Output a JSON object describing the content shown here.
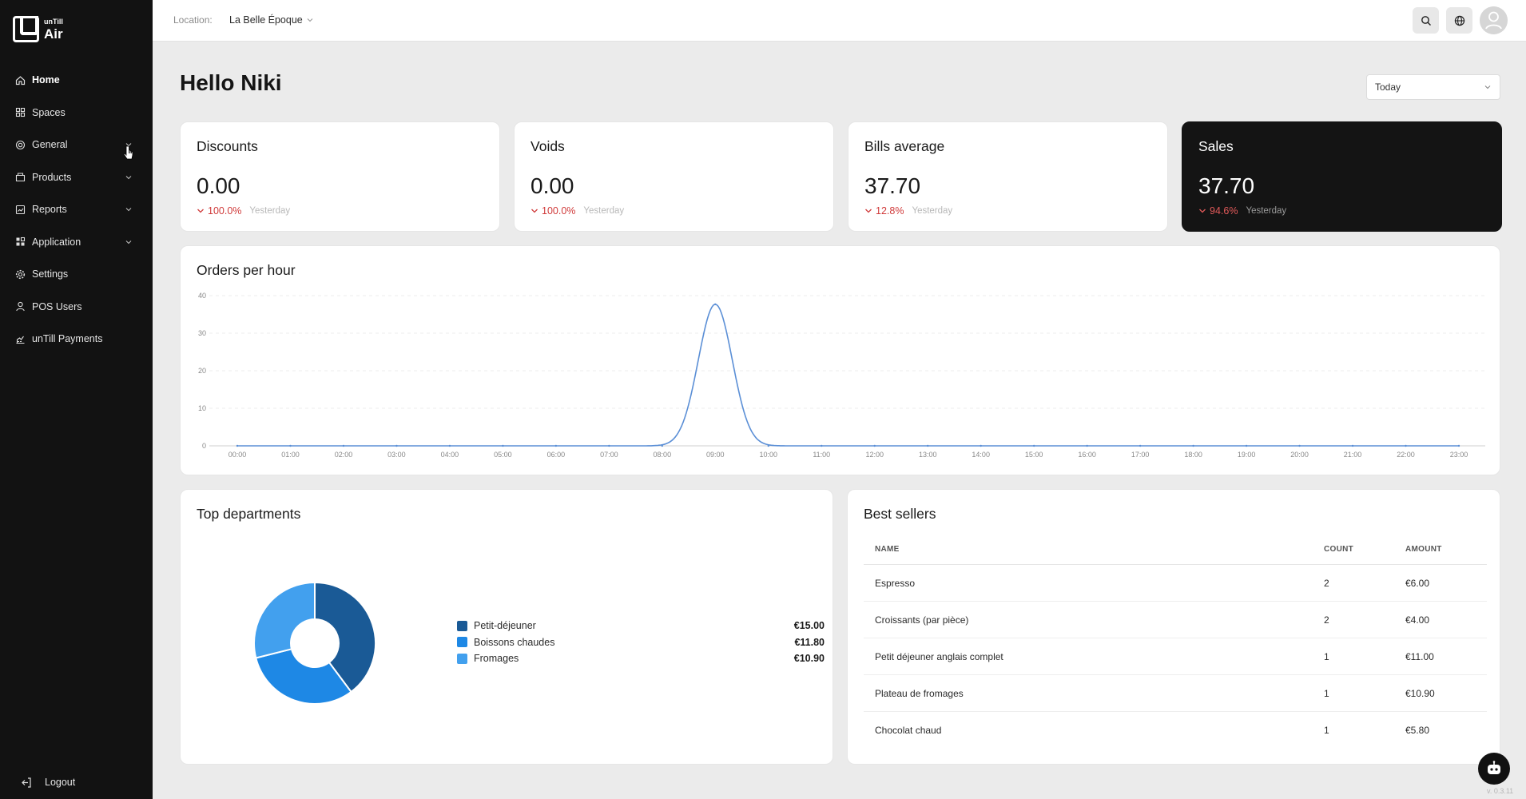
{
  "brand": {
    "small": "unTill",
    "name": "Air"
  },
  "nav": {
    "items": [
      {
        "label": "Home",
        "icon": "home-icon",
        "active": true,
        "expandable": false
      },
      {
        "label": "Spaces",
        "icon": "grid-icon",
        "active": false,
        "expandable": false
      },
      {
        "label": "General",
        "icon": "target-icon",
        "active": false,
        "expandable": true
      },
      {
        "label": "Products",
        "icon": "box-icon",
        "active": false,
        "expandable": true
      },
      {
        "label": "Reports",
        "icon": "report-icon",
        "active": false,
        "expandable": true
      },
      {
        "label": "Application",
        "icon": "apps-icon",
        "active": false,
        "expandable": true
      },
      {
        "label": "Settings",
        "icon": "gear-icon",
        "active": false,
        "expandable": false
      },
      {
        "label": "POS Users",
        "icon": "user-icon",
        "active": false,
        "expandable": false
      },
      {
        "label": "unTill Payments",
        "icon": "payments-icon",
        "active": false,
        "expandable": false
      }
    ],
    "logout": "Logout"
  },
  "topbar": {
    "location_label": "Location:",
    "location_value": "La Belle Époque"
  },
  "greeting": "Hello Niki",
  "period": "Today",
  "kpis": [
    {
      "title": "Discounts",
      "value": "0.00",
      "change": "100.0%",
      "compare": "Yesterday",
      "dark": false
    },
    {
      "title": "Voids",
      "value": "0.00",
      "change": "100.0%",
      "compare": "Yesterday",
      "dark": false
    },
    {
      "title": "Bills average",
      "value": "37.70",
      "change": "12.8%",
      "compare": "Yesterday",
      "dark": false
    },
    {
      "title": "Sales",
      "value": "37.70",
      "change": "94.6%",
      "compare": "Yesterday",
      "dark": true
    }
  ],
  "orders_chart": {
    "title": "Orders per hour",
    "chart_data": {
      "type": "line",
      "x": [
        "00:00",
        "01:00",
        "02:00",
        "03:00",
        "04:00",
        "05:00",
        "06:00",
        "07:00",
        "08:00",
        "09:00",
        "10:00",
        "11:00",
        "12:00",
        "13:00",
        "14:00",
        "15:00",
        "16:00",
        "17:00",
        "18:00",
        "19:00",
        "20:00",
        "21:00",
        "22:00",
        "23:00"
      ],
      "values": [
        0,
        0,
        0,
        0,
        0,
        0,
        0,
        0,
        0,
        37.7,
        0,
        0,
        0,
        0,
        0,
        0,
        0,
        0,
        0,
        0,
        0,
        0,
        0,
        0
      ],
      "yticks": [
        0,
        10,
        20,
        30,
        40
      ],
      "ylim": [
        0,
        40
      ],
      "grid": true,
      "color": "#5b8fd6"
    }
  },
  "departments": {
    "title": "Top departments",
    "chart_data": {
      "type": "pie",
      "categories": [
        "Petit-déjeuner",
        "Boissons chaudes",
        "Fromages"
      ],
      "values": [
        15.0,
        11.8,
        10.9
      ],
      "labels": [
        "€15.00",
        "€11.80",
        "€10.90"
      ],
      "colors": [
        "#1a5a96",
        "#1e88e5",
        "#42a0ee"
      ]
    }
  },
  "best_sellers": {
    "title": "Best sellers",
    "columns": [
      "NAME",
      "COUNT",
      "AMOUNT"
    ],
    "rows": [
      {
        "name": "Espresso",
        "count": "2",
        "amount": "€6.00"
      },
      {
        "name": "Croissants (par pièce)",
        "count": "2",
        "amount": "€4.00"
      },
      {
        "name": "Petit déjeuner anglais complet",
        "count": "1",
        "amount": "€11.00"
      },
      {
        "name": "Plateau de fromages",
        "count": "1",
        "amount": "€10.90"
      },
      {
        "name": "Chocolat chaud",
        "count": "1",
        "amount": "€5.80"
      }
    ]
  },
  "version": "v. 0.3.11"
}
